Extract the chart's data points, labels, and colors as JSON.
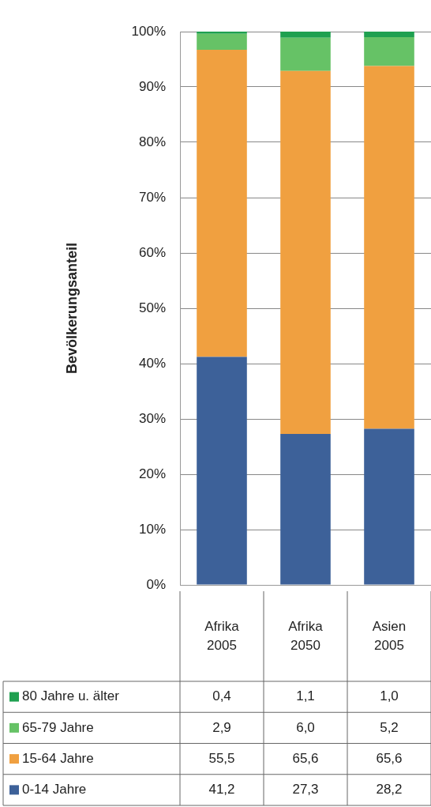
{
  "chart_data": {
    "type": "bar",
    "stacked": true,
    "ylabel": "Bevölkerungsanteil",
    "categories": [
      "Afrika 2005",
      "Afrika 2050",
      "Asien 2005"
    ],
    "series": [
      {
        "name": "0-14 Jahre",
        "color": "#3d6199",
        "values": [
          41.2,
          27.3,
          28.2
        ],
        "value_labels": [
          "41,2",
          "27,3",
          "28,2"
        ]
      },
      {
        "name": "15-64 Jahre",
        "color": "#f0a040",
        "values": [
          55.5,
          65.6,
          65.6
        ],
        "value_labels": [
          "55,5",
          "65,6",
          "65,6"
        ]
      },
      {
        "name": "65-79 Jahre",
        "color": "#66c266",
        "values": [
          2.9,
          6.0,
          5.2
        ],
        "value_labels": [
          "2,9",
          "6,0",
          "5,2"
        ]
      },
      {
        "name": "80 Jahre u. älter",
        "color": "#1fa050",
        "values": [
          0.4,
          1.1,
          1.0
        ],
        "value_labels": [
          "0,4",
          "1,1",
          "1,0"
        ]
      }
    ],
    "ylim": [
      0,
      100
    ],
    "yticks": [
      {
        "value": 0,
        "label": "0%"
      },
      {
        "value": 10,
        "label": "10%"
      },
      {
        "value": 20,
        "label": "20%"
      },
      {
        "value": 30,
        "label": "30%"
      },
      {
        "value": 40,
        "label": "40%"
      },
      {
        "value": 50,
        "label": "50%"
      },
      {
        "value": 60,
        "label": "60%"
      },
      {
        "value": 70,
        "label": "70%"
      },
      {
        "value": 80,
        "label": "80%"
      },
      {
        "value": 90,
        "label": "90%"
      },
      {
        "value": 100,
        "label": "100%"
      }
    ],
    "grid": "y",
    "legend": "bottom"
  }
}
